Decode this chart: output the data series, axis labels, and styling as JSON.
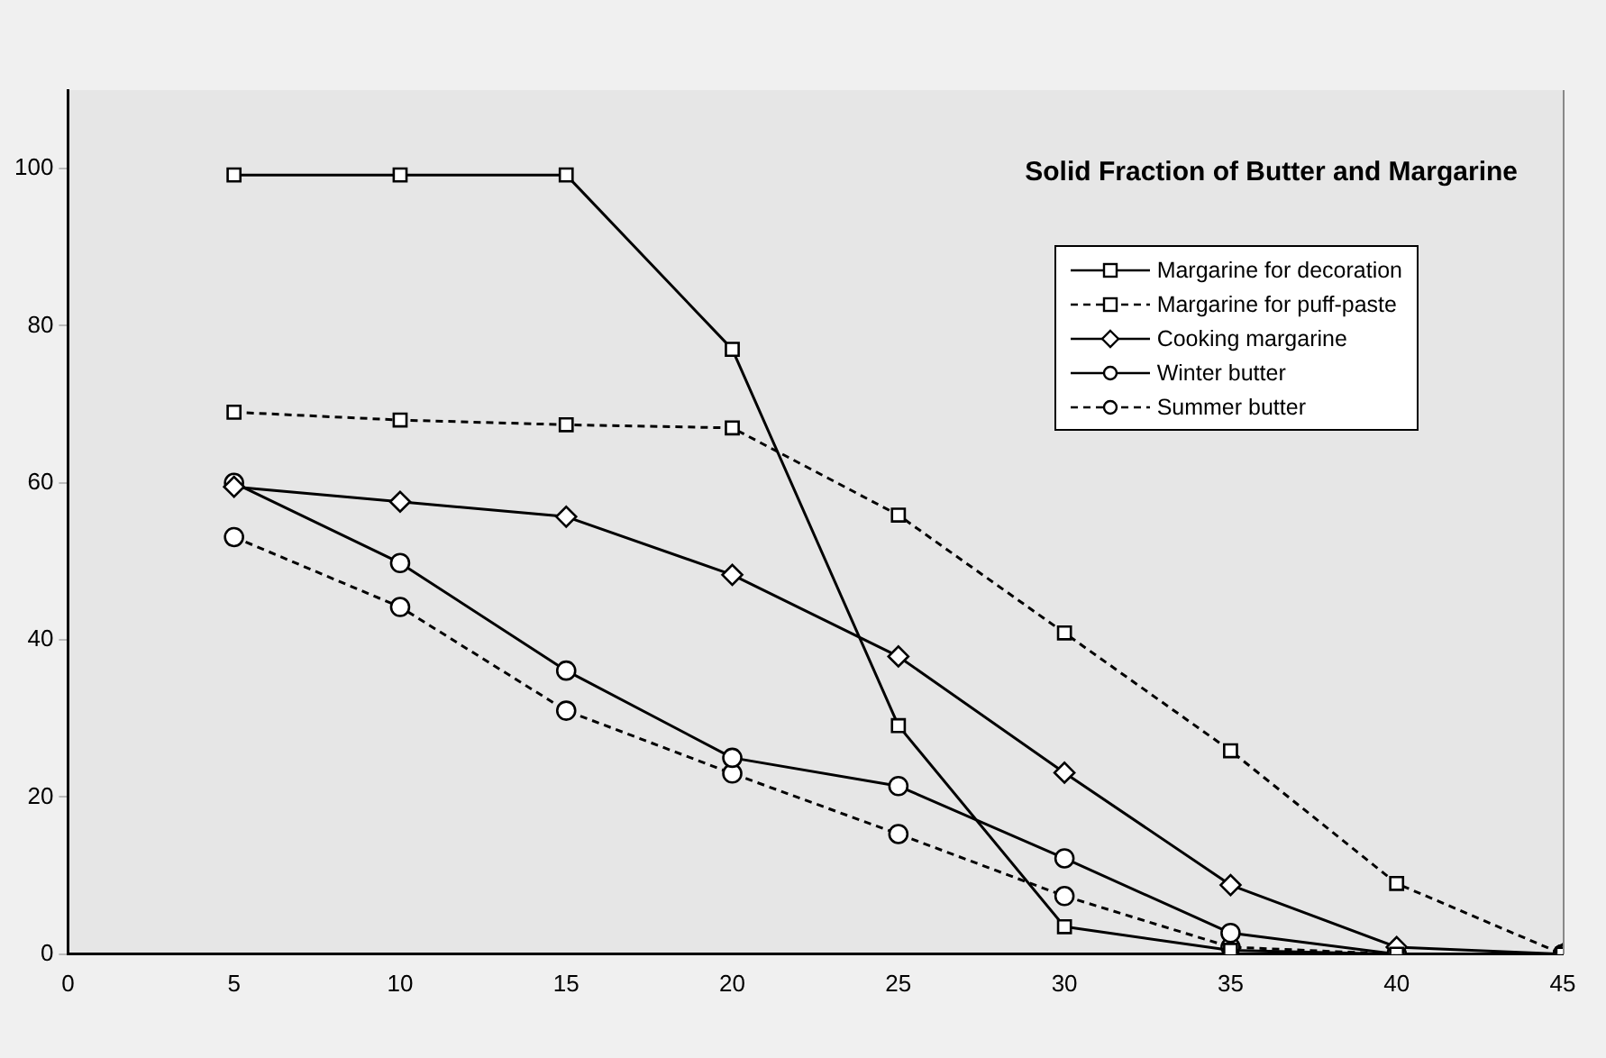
{
  "chart_data": {
    "type": "line",
    "title": "Solid Fraction of Butter and Margarine",
    "x": [
      5,
      10,
      15,
      20,
      25,
      30,
      35,
      40,
      45
    ],
    "xlim": [
      0,
      45
    ],
    "xticks": [
      0,
      5,
      10,
      15,
      20,
      25,
      30,
      35,
      40,
      45
    ],
    "ylim": [
      0,
      110
    ],
    "yticks": [
      0,
      20,
      40,
      60,
      80,
      100
    ],
    "grid": false,
    "legend": "top right",
    "series": [
      {
        "name": "Margarine for decoration",
        "color": "#000000",
        "marker": "square",
        "line_style": "solid",
        "values": [
          99.2,
          99.2,
          99.2,
          77,
          29.1,
          3.5,
          0.5,
          0,
          0
        ]
      },
      {
        "name": "Margarine for puff-paste",
        "color": "#000000",
        "marker": "square",
        "line_style": "dashed",
        "values": [
          69,
          68,
          67.4,
          67,
          55.9,
          40.9,
          25.9,
          9,
          0
        ]
      },
      {
        "name": "Cooking margarine",
        "color": "#000000",
        "marker": "diamond",
        "line_style": "solid",
        "values": [
          59.5,
          57.6,
          55.7,
          48.3,
          37.9,
          23.1,
          8.8,
          0.9,
          0
        ]
      },
      {
        "name": "Winter butter",
        "color": "#000000",
        "marker": "circle",
        "line_style": "solid",
        "values": [
          60,
          49.8,
          36.1,
          25,
          21.4,
          12.2,
          2.7,
          0,
          0
        ]
      },
      {
        "name": "Summer butter",
        "color": "#000000",
        "marker": "circle",
        "line_style": "dashed",
        "values": [
          53.1,
          44.2,
          31,
          23,
          15.3,
          7.4,
          0.9,
          0,
          0
        ]
      }
    ]
  }
}
